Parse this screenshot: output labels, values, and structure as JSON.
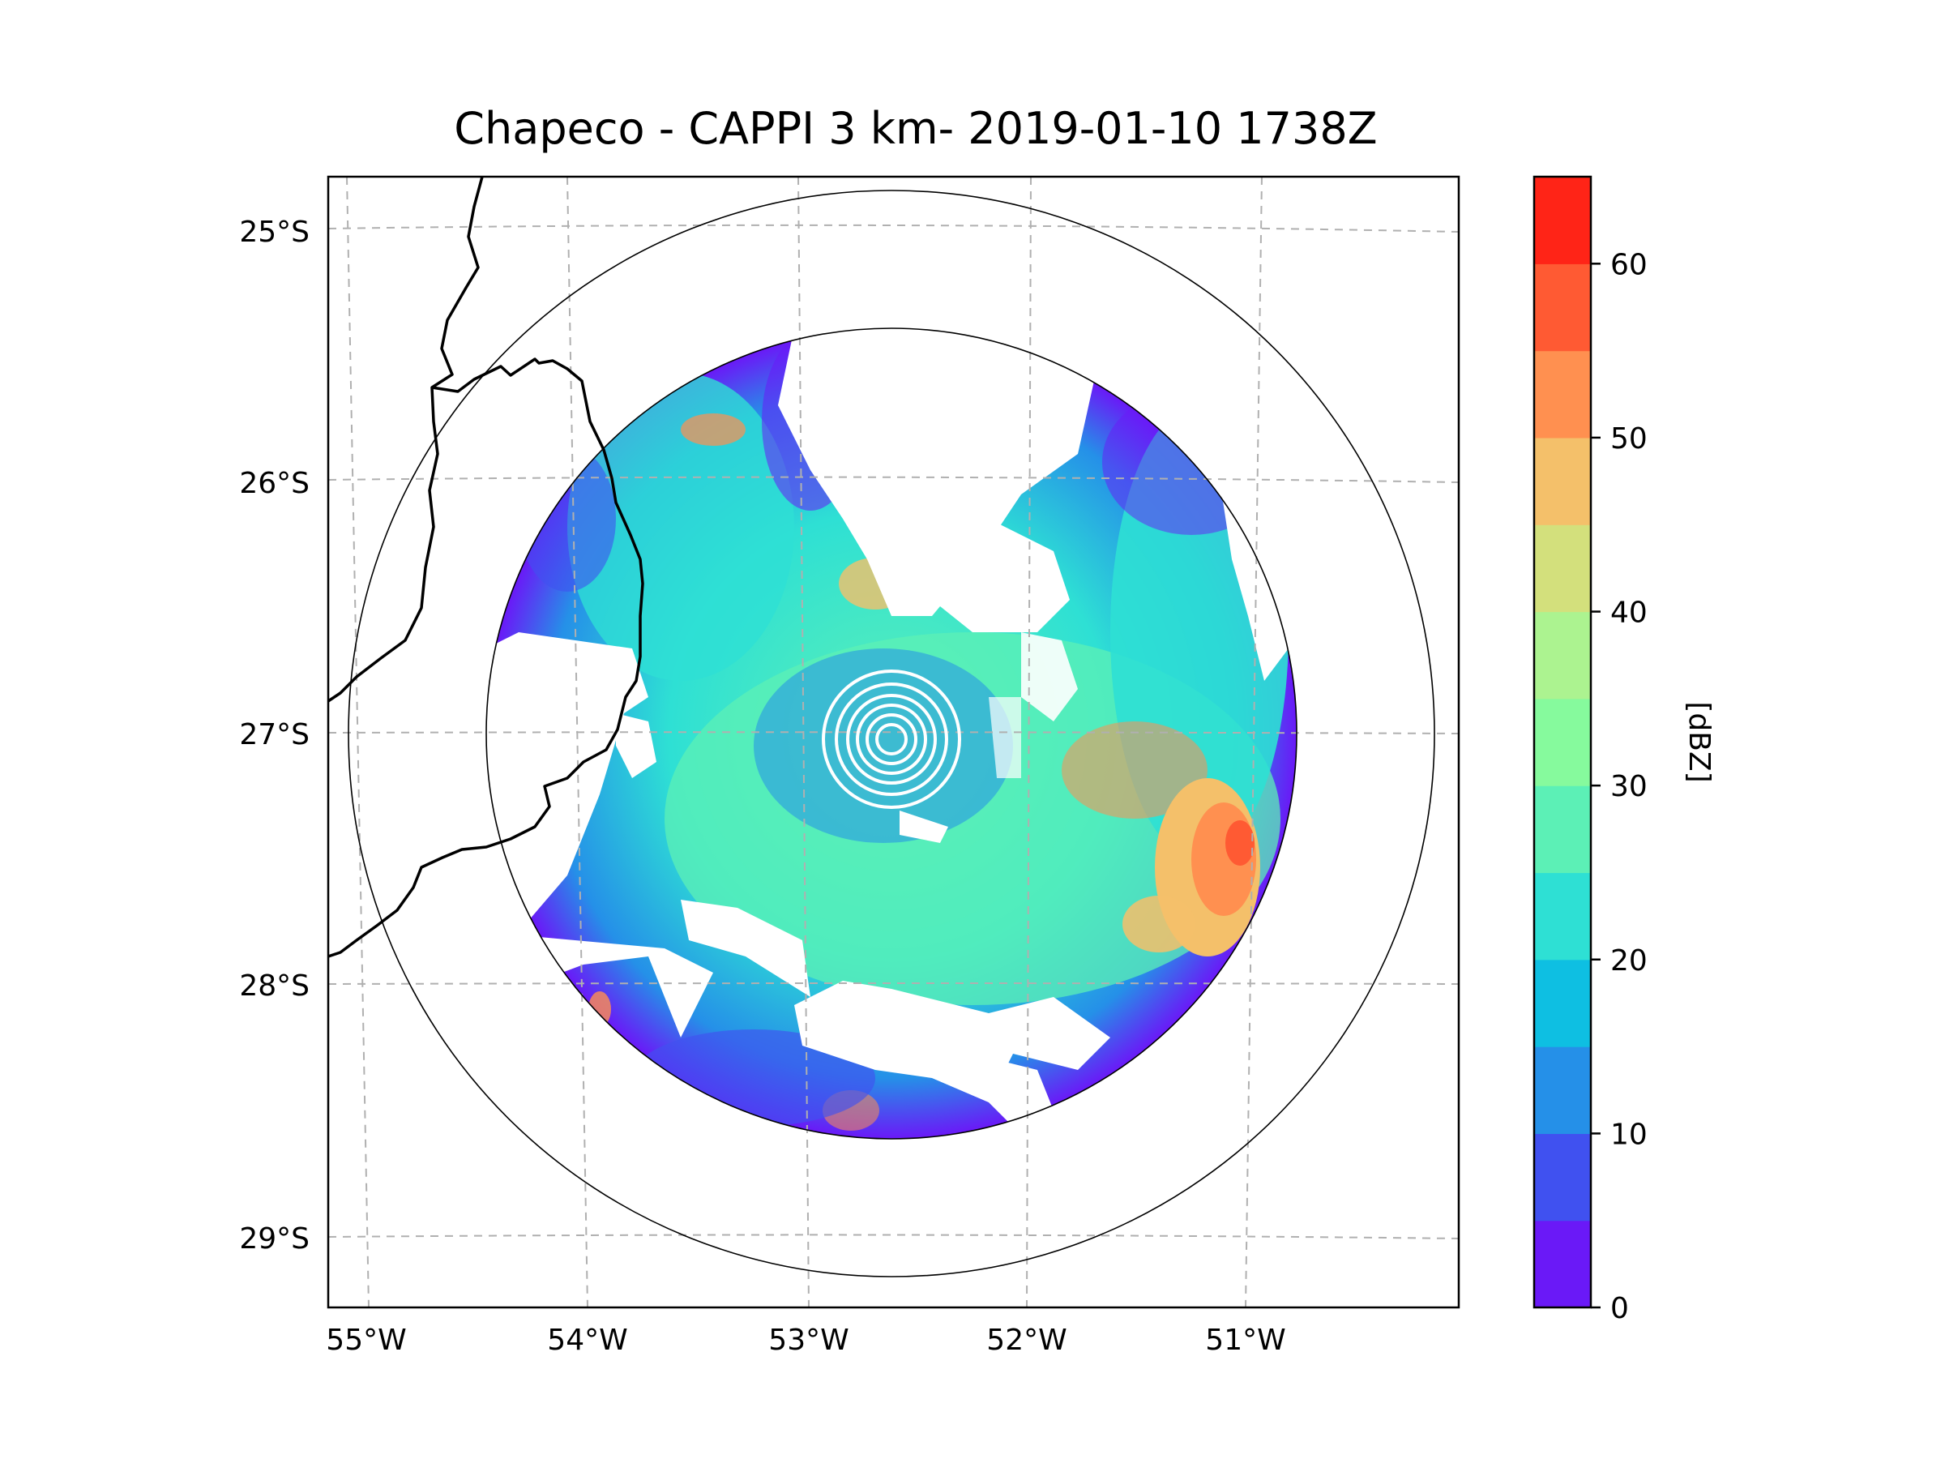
{
  "title": "Chapeco - CAPPI 3 km- 2019-01-10 1738Z",
  "map": {
    "lat_labels": [
      "25°S",
      "26°S",
      "27°S",
      "28°S",
      "29°S"
    ],
    "lon_labels": [
      "55°W",
      "54°W",
      "53°W",
      "52°W",
      "51°W"
    ],
    "grid_style": "dashed-gray",
    "border_color": "#000000",
    "range_ring_color": "#000000",
    "inner_rings_color": "#ffffff"
  },
  "colorbar": {
    "label": "[dBZ]",
    "tick_labels": [
      "0",
      "10",
      "20",
      "30",
      "40",
      "50",
      "60"
    ],
    "min": 0,
    "max": 65,
    "step": 5,
    "colors": [
      "#6a19f7",
      "#4051f0",
      "#2590e8",
      "#0ebfe2",
      "#2ee0d4",
      "#5cf0b6",
      "#86fa9d",
      "#acf390",
      "#d3e07c",
      "#f4c06a",
      "#ff9050",
      "#ff5a33",
      "#ff2417"
    ]
  }
}
